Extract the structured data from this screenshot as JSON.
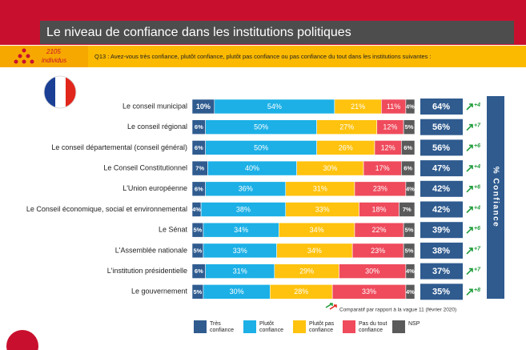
{
  "chart_data": {
    "type": "stacked_barh",
    "title": "Le niveau de confiance dans les institutions politiques",
    "sample_size": "2105",
    "sample_unit": "individus",
    "question": "Q13 : Avez-vous très confiance, plutôt confiance, plutôt pas confiance ou pas confiance du tout dans les institutions suivantes :",
    "side_label": "% Confiance",
    "footnote": "Comparatif par rapport à la vague 11 (février 2020)",
    "xlim": [
      0,
      100
    ],
    "categories": [
      "Le conseil municipal",
      "Le conseil régional",
      "Le conseil départemental (conseil général)",
      "Le Conseil Constitutionnel",
      "L'Union européenne",
      "Le Conseil économique, social et environnemental",
      "Le Sénat",
      "L'Assemblée nationale",
      "L'institution présidentielle",
      "Le gouvernement"
    ],
    "series": [
      {
        "name": "Très confiance",
        "color": "#2f5b8f",
        "values": [
          10,
          6,
          6,
          7,
          6,
          4,
          5,
          5,
          6,
          5
        ],
        "value_labels": [
          "10%",
          "6%",
          "6%",
          "7%",
          "6%",
          "4%",
          "5%",
          "5%",
          "6%",
          "5%"
        ]
      },
      {
        "name": "Plutôt confiance",
        "color": "#1cb0e6",
        "values": [
          54,
          50,
          50,
          40,
          36,
          38,
          34,
          33,
          31,
          30
        ],
        "value_labels": [
          "54%",
          "50%",
          "50%",
          "40%",
          "36%",
          "38%",
          "34%",
          "33%",
          "31%",
          "30%"
        ]
      },
      {
        "name": "Plutôt pas confiance",
        "color": "#ffc20e",
        "values": [
          21,
          27,
          26,
          30,
          31,
          33,
          34,
          34,
          29,
          28
        ],
        "value_labels": [
          "21%",
          "27%",
          "26%",
          "30%",
          "31%",
          "33%",
          "34%",
          "34%",
          "29%",
          "28%"
        ]
      },
      {
        "name": "Pas du tout confiance",
        "color": "#ef4b5c",
        "values": [
          11,
          12,
          12,
          17,
          23,
          18,
          22,
          23,
          30,
          33
        ],
        "value_labels": [
          "11%",
          "12%",
          "12%",
          "17%",
          "23%",
          "18%",
          "22%",
          "23%",
          "30%",
          "33%"
        ]
      },
      {
        "name": "NSP",
        "color": "#5a5a5a",
        "values": [
          4,
          5,
          6,
          6,
          4,
          7,
          5,
          5,
          4,
          4
        ],
        "value_labels": [
          "4%",
          "5%",
          "6%",
          "6%",
          "4%",
          "7%",
          "5%",
          "5%",
          "4%",
          "4%"
        ]
      }
    ],
    "confidence_total": {
      "color": "#2f5b8f",
      "values": [
        64,
        56,
        56,
        47,
        42,
        42,
        39,
        38,
        37,
        35
      ],
      "value_labels": [
        "64%",
        "56%",
        "56%",
        "47%",
        "42%",
        "42%",
        "39%",
        "38%",
        "37%",
        "35%"
      ]
    },
    "change": {
      "color": "#1e9b3a",
      "values": [
        4,
        7,
        6,
        4,
        6,
        4,
        6,
        7,
        7,
        8
      ],
      "value_labels": [
        "+4",
        "+7",
        "+6",
        "+4",
        "+6",
        "+4",
        "+6",
        "+7",
        "+7",
        "+8"
      ]
    }
  }
}
